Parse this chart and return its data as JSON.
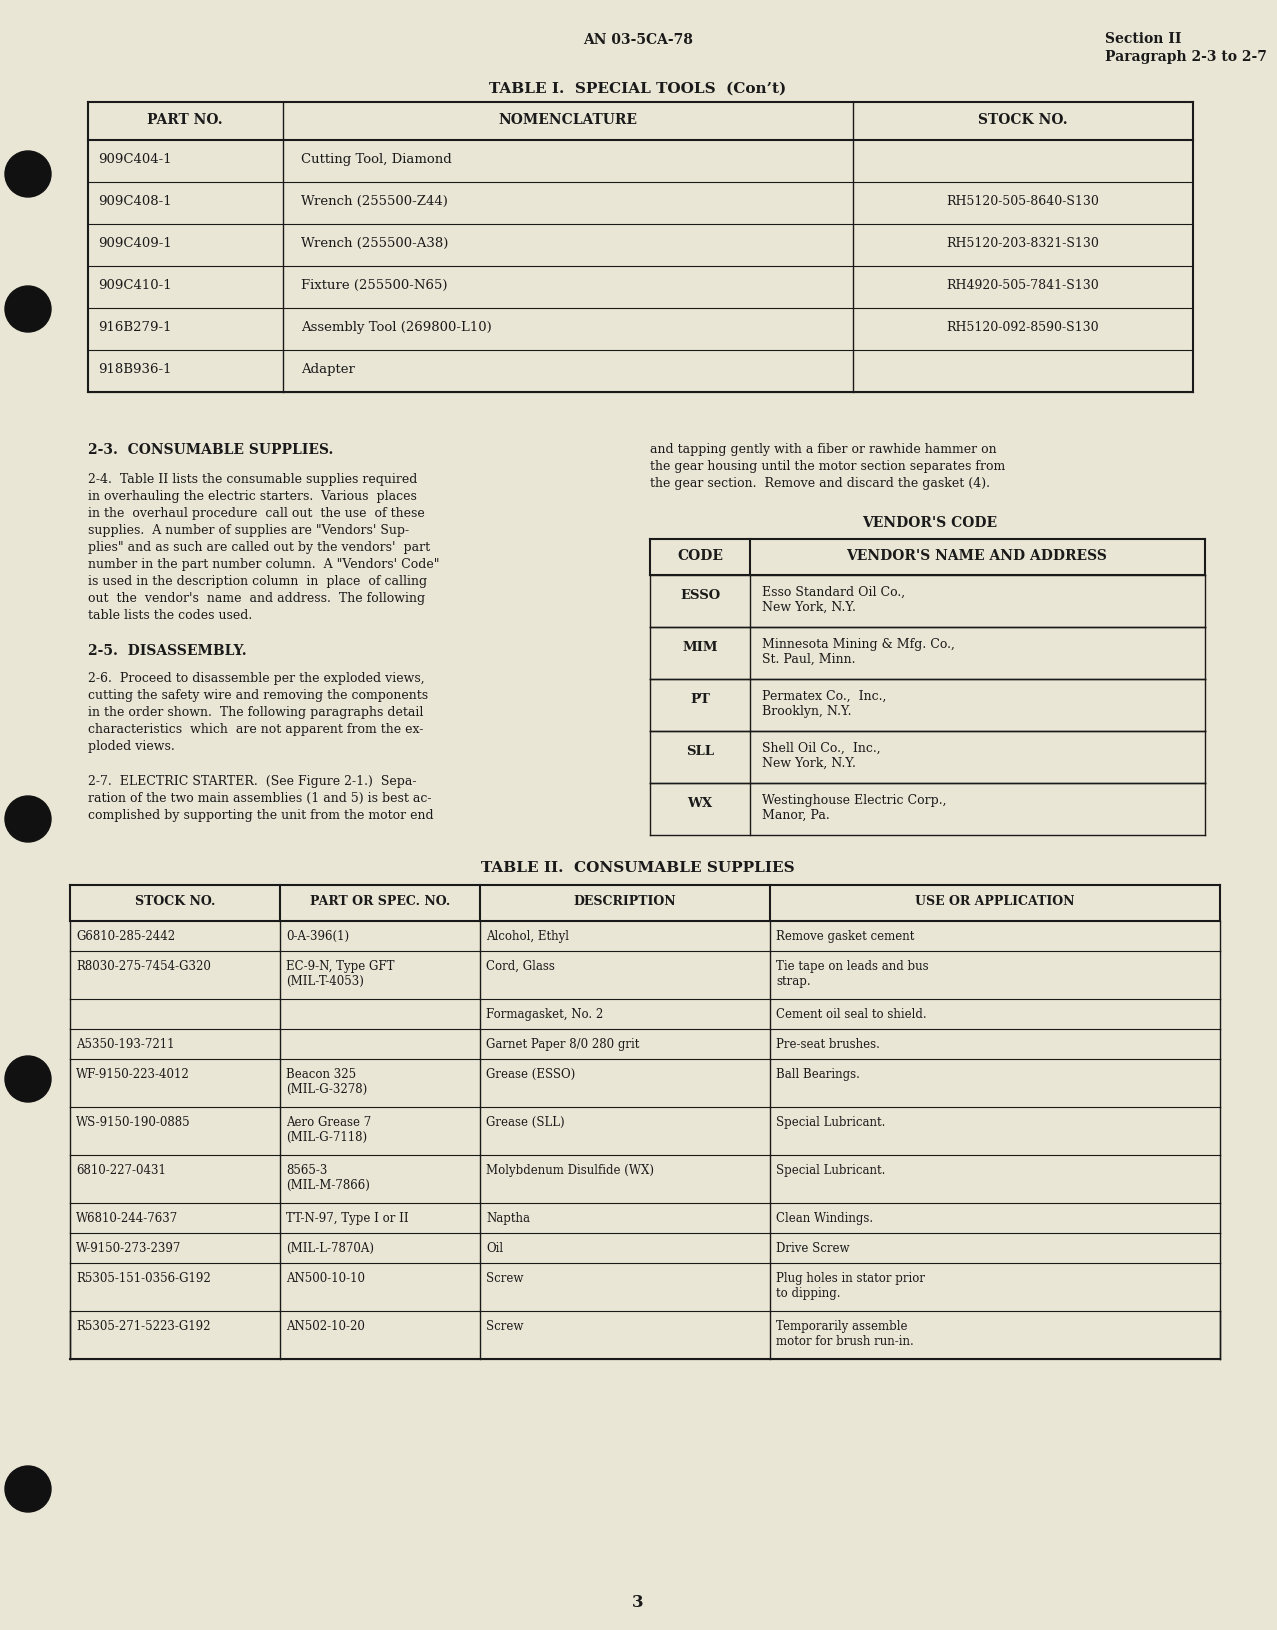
{
  "bg_color": "#EAE6D5",
  "text_color": "#1a1a1a",
  "header_top_left": "AN 03-5CA-78",
  "header_top_right_line1": "Section II",
  "header_top_right_line2": "Paragraph 2-3 to 2-7",
  "table1_title": "TABLE I.  SPECIAL TOOLS  (Con’t)",
  "table1_headers": [
    "PART NO.",
    "NOMENCLATURE",
    "STOCK NO."
  ],
  "table1_rows": [
    [
      "909C404-1",
      "Cutting Tool, Diamond",
      ""
    ],
    [
      "909C408-1",
      "Wrench (255500-Z44)",
      "RH5120-505-8640-S130"
    ],
    [
      "909C409-1",
      "Wrench (255500-A38)",
      "RH5120-203-8321-S130"
    ],
    [
      "909C410-1",
      "Fixture (255500-N65)",
      "RH4920-505-7841-S130"
    ],
    [
      "916B279-1",
      "Assembly Tool (269800-L10)",
      "RH5120-092-8590-S130"
    ],
    [
      "918B936-1",
      "Adapter",
      ""
    ]
  ],
  "section_23_title": "2-3.  CONSUMABLE SUPPLIES.",
  "section_24_lines": [
    "2-4.  Table II lists the consumable supplies required",
    "in overhauling the electric starters.  Various  places",
    "in the  overhaul procedure  call out  the use  of these",
    "supplies.  A number of supplies are \"Vendors' Sup-",
    "plies\" and as such are called out by the vendors'  part",
    "number in the part number column.  A \"Vendors' Code\"",
    "is used in the description column  in  place  of calling",
    "out  the  vendor's  name  and address.  The following",
    "table lists the codes used."
  ],
  "section_25_title": "2-5.  DISASSEMBLY.",
  "section_26_lines": [
    "2-6.  Proceed to disassemble per the exploded views,",
    "cutting the safety wire and removing the components",
    "in the order shown.  The following paragraphs detail",
    "characteristics  which  are not apparent from the ex-",
    "ploded views."
  ],
  "section_27_lines": [
    "2-7.  ELECTRIC STARTER.  (See Figure 2-1.)  Sepa-",
    "ration of the two main assemblies (1 and 5) is best ac-",
    "complished by supporting the unit from the motor end"
  ],
  "right_col_lines": [
    "and tapping gently with a fiber or rawhide hammer on",
    "the gear housing until the motor section separates from",
    "the gear section.  Remove and discard the gasket (4)."
  ],
  "vendor_code_title": "VENDOR'S CODE",
  "vendor_table_headers": [
    "CODE",
    "VENDOR'S NAME AND ADDRESS"
  ],
  "vendor_table_rows": [
    [
      "ESSO",
      "Esso Standard Oil Co.,\nNew York, N.Y."
    ],
    [
      "MIM",
      "Minnesota Mining & Mfg. Co.,\nSt. Paul, Minn."
    ],
    [
      "PT",
      "Permatex Co.,  Inc.,\nBrooklyn, N.Y."
    ],
    [
      "SLL",
      "Shell Oil Co.,  Inc.,\nNew York, N.Y."
    ],
    [
      "WX",
      "Westinghouse Electric Corp.,\nManor, Pa."
    ]
  ],
  "table2_title": "TABLE II.  CONSUMABLE SUPPLIES",
  "table2_headers": [
    "STOCK NO.",
    "PART OR SPEC. NO.",
    "DESCRIPTION",
    "USE OR APPLICATION"
  ],
  "table2_rows": [
    [
      "G6810-285-2442",
      "0-A-396(1)",
      "Alcohol, Ethyl",
      "Remove gasket cement"
    ],
    [
      "R8030-275-7454-G320",
      "EC-9-N, Type GFT\n(MIL-T-4053)",
      "Cord, Glass",
      "Tie tape on leads and bus\nstrap."
    ],
    [
      "",
      "",
      "Formagasket, No. 2",
      "Cement oil seal to shield."
    ],
    [
      "A5350-193-7211",
      "",
      "Garnet Paper 8/0 280 grit",
      "Pre-seat brushes."
    ],
    [
      "WF-9150-223-4012",
      "Beacon 325\n(MIL-G-3278)",
      "Grease (ESSO)",
      "Ball Bearings."
    ],
    [
      "WS-9150-190-0885",
      "Aero Grease 7\n(MIL-G-7118)",
      "Grease (SLL)",
      "Special Lubricant."
    ],
    [
      "6810-227-0431",
      "8565-3\n(MIL-M-7866)",
      "Molybdenum Disulfide (WX)",
      "Special Lubricant."
    ],
    [
      "W6810-244-7637",
      "TT-N-97, Type I or II",
      "Naptha",
      "Clean Windings."
    ],
    [
      "W-9150-273-2397",
      "(MIL-L-7870A)",
      "Oil",
      "Drive Screw"
    ],
    [
      "R5305-151-0356-G192",
      "AN500-10-10",
      "Screw",
      "Plug holes in stator prior\nto dipping."
    ],
    [
      "R5305-271-5223-G192",
      "AN502-10-20",
      "Screw",
      "Temporarily assemble\nmotor for brush run-in."
    ]
  ],
  "table2_row_heights": [
    30,
    48,
    30,
    30,
    48,
    48,
    48,
    30,
    30,
    48,
    48
  ],
  "page_number": "3",
  "circles_y": [
    175,
    310,
    820,
    1080,
    1490
  ]
}
